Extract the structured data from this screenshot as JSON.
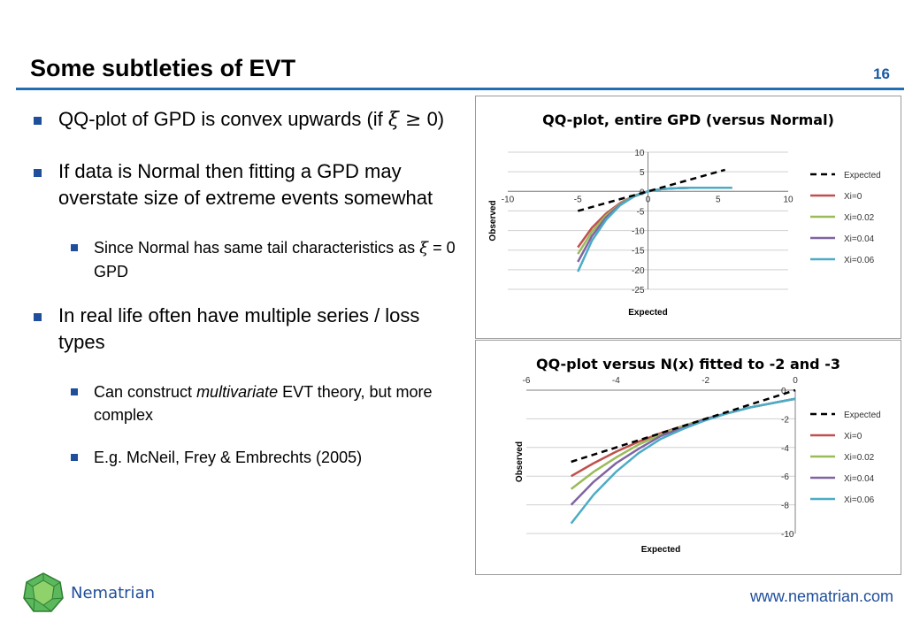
{
  "slide": {
    "title": "Some subtleties of EVT",
    "page_number": "16"
  },
  "bullets": [
    {
      "pre": "QQ-plot of GPD is convex upwards (if ",
      "sym": "ξ ≥",
      "post": " 0)"
    },
    {
      "text": "If data is Normal then fitting a GPD may overstate size of extreme events somewhat"
    },
    {
      "pre": "Since Normal has same tail characteristics as ",
      "sym": "ξ",
      "post": " = 0 GPD"
    },
    {
      "text": "In real life often have multiple series / loss types"
    },
    {
      "pre": "Can construct ",
      "em": "multivariate",
      "post": " EVT theory, but more complex"
    },
    {
      "text": "E.g. McNeil, Frey & Embrechts (2005)"
    }
  ],
  "footer": {
    "brand": "Nematrian",
    "url": "www.nematrian.com"
  },
  "colors": {
    "accent": "#1f6fb2",
    "expected": "#000000",
    "xi0": "#c0504d",
    "xi002": "#9bbb59",
    "xi004": "#8064a2",
    "xi006": "#4bacc6"
  },
  "chart_data": [
    {
      "type": "line",
      "title": "QQ-plot, entire GPD (versus Normal)",
      "xlabel": "Expected",
      "ylabel": "Observed",
      "xlim": [
        -10,
        10
      ],
      "ylim": [
        -25,
        10
      ],
      "xticks": [
        "-10",
        "-5",
        "0",
        "5",
        "10"
      ],
      "yticks": [
        "10",
        "5",
        "0",
        "-5",
        "-10",
        "-15",
        "-20",
        "-25"
      ],
      "legend_position": "right",
      "series": [
        {
          "name": "Expected",
          "style": "dashed",
          "x": [
            -5,
            5.5
          ],
          "y": [
            -5,
            5.5
          ]
        },
        {
          "name": "Xi=0",
          "x": [
            -5,
            -4,
            -3,
            -2,
            -1,
            0,
            1,
            2,
            3,
            4,
            5,
            6
          ],
          "y": [
            -14.3,
            -9.3,
            -5.7,
            -3.0,
            -1.1,
            0,
            0.6,
            0.8,
            0.9,
            0.9,
            0.9,
            0.9
          ]
        },
        {
          "name": "Xi=0.02",
          "x": [
            -5,
            -4,
            -3,
            -2,
            -1,
            0,
            1,
            2,
            3,
            4,
            5,
            6
          ],
          "y": [
            -16.0,
            -10.3,
            -6.2,
            -3.2,
            -1.2,
            0,
            0.6,
            0.8,
            0.9,
            0.9,
            0.9,
            0.9
          ]
        },
        {
          "name": "Xi=0.04",
          "x": [
            -5,
            -4,
            -3,
            -2,
            -1,
            0,
            1,
            2,
            3,
            4,
            5,
            6
          ],
          "y": [
            -18.0,
            -11.4,
            -6.7,
            -3.4,
            -1.3,
            0,
            0.6,
            0.8,
            0.9,
            0.9,
            0.9,
            0.9
          ]
        },
        {
          "name": "Xi=0.06",
          "x": [
            -5,
            -4,
            -3,
            -2,
            -1,
            0,
            1,
            2,
            3,
            4,
            5,
            6
          ],
          "y": [
            -20.5,
            -12.6,
            -7.3,
            -3.6,
            -1.3,
            0,
            0.6,
            0.8,
            0.9,
            0.9,
            0.9,
            0.9
          ]
        }
      ]
    },
    {
      "type": "line",
      "title": "QQ-plot versus N(x) fitted to -2 and -3",
      "xlabel": "Expected",
      "ylabel": "Observed",
      "xlim": [
        -6,
        0
      ],
      "ylim": [
        -10,
        0
      ],
      "xticks": [
        "-6",
        "-4",
        "-2",
        "0"
      ],
      "yticks": [
        "0",
        "-2",
        "-4",
        "-6",
        "-8",
        "-10"
      ],
      "legend_position": "right",
      "series": [
        {
          "name": "Expected",
          "style": "dashed",
          "x": [
            -5,
            0
          ],
          "y": [
            -5,
            0
          ]
        },
        {
          "name": "Xi=0",
          "x": [
            -5,
            -4.5,
            -4,
            -3.5,
            -3,
            -2.5,
            -2,
            -1.5,
            -1,
            -0.5,
            0
          ],
          "y": [
            -6.0,
            -5.1,
            -4.3,
            -3.6,
            -3.0,
            -2.5,
            -2.0,
            -1.6,
            -1.2,
            -0.9,
            -0.6
          ]
        },
        {
          "name": "Xi=0.02",
          "x": [
            -5,
            -4.5,
            -4,
            -3.5,
            -3,
            -2.5,
            -2,
            -1.5,
            -1,
            -0.5,
            0
          ],
          "y": [
            -6.9,
            -5.7,
            -4.7,
            -3.8,
            -3.1,
            -2.5,
            -2.0,
            -1.6,
            -1.2,
            -0.9,
            -0.6
          ]
        },
        {
          "name": "Xi=0.04",
          "x": [
            -5,
            -4.5,
            -4,
            -3.5,
            -3,
            -2.5,
            -2,
            -1.5,
            -1,
            -0.5,
            0
          ],
          "y": [
            -8.0,
            -6.4,
            -5.1,
            -4.1,
            -3.2,
            -2.6,
            -2.0,
            -1.6,
            -1.2,
            -0.9,
            -0.6
          ]
        },
        {
          "name": "Xi=0.06",
          "x": [
            -5,
            -4.5,
            -4,
            -3.5,
            -3,
            -2.5,
            -2,
            -1.5,
            -1,
            -0.5,
            0
          ],
          "y": [
            -9.3,
            -7.3,
            -5.7,
            -4.4,
            -3.4,
            -2.7,
            -2.1,
            -1.6,
            -1.2,
            -0.9,
            -0.6
          ]
        }
      ]
    }
  ]
}
